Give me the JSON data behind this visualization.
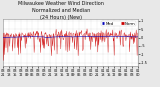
{
  "title_line1": "Milwaukee Weather Wind Direction",
  "title_line2": "Normalized and Median",
  "title_line3": "(24 Hours) (New)",
  "background_color": "#e8e8e8",
  "plot_bg_color": "#ffffff",
  "grid_color": "#aaaaaa",
  "line_color": "#cc0000",
  "median_color": "#0000bb",
  "ylim": [
    -1.7,
    1.1
  ],
  "xlim": [
    0,
    287
  ],
  "num_points": 288,
  "seed": 42,
  "title_fontsize": 3.5,
  "tick_fontsize": 2.5,
  "legend_fontsize": 2.8,
  "yticks": [
    -1.5,
    -1.0,
    -0.5,
    0.0,
    0.5,
    1.0
  ],
  "ytick_labels": [
    "-1.5",
    "-1",
    "-.5",
    "0",
    ".5",
    "1"
  ]
}
